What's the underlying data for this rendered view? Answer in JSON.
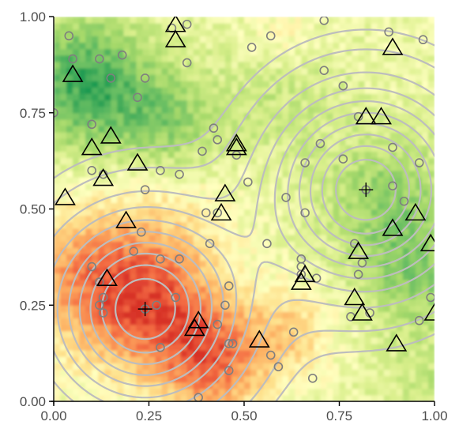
{
  "chart_data": {
    "type": "scatter",
    "title": "",
    "xlabel": "",
    "ylabel": "",
    "xlim": [
      0,
      1
    ],
    "ylim": [
      0,
      1
    ],
    "x_ticks": [
      "0.00",
      "0.25",
      "0.50",
      "0.75",
      "1.00"
    ],
    "y_ticks": [
      "0.00",
      "0.25",
      "0.50",
      "0.75",
      "1.00"
    ],
    "grid": false,
    "legend": "none",
    "background_heatmap": {
      "palette": [
        "#d73027",
        "#f46d43",
        "#fdae61",
        "#fee08b",
        "#ffffbf",
        "#d9ef8b",
        "#a6d96a",
        "#66bd63",
        "#1a9850"
      ],
      "low_regions": [
        [
          0.25,
          0.25
        ],
        [
          0.4,
          0.1
        ],
        [
          0.05,
          0.3
        ]
      ],
      "high_regions": [
        [
          0.08,
          0.83
        ],
        [
          0.3,
          0.7
        ],
        [
          0.9,
          0.5
        ],
        [
          0.95,
          0.3
        ]
      ]
    },
    "contours": {
      "color": "#bdbdbd",
      "centers": [
        [
          0.24,
          0.24
        ],
        [
          0.82,
          0.55
        ]
      ]
    },
    "centers": [
      [
        0.24,
        0.24
      ],
      [
        0.82,
        0.55
      ]
    ],
    "series": [
      {
        "marker": "circle",
        "color": "#7f7f7f",
        "points": [
          [
            0.04,
            0.95
          ],
          [
            0.05,
            0.89
          ],
          [
            0.12,
            0.89
          ],
          [
            0.18,
            0.9
          ],
          [
            0.15,
            0.84
          ],
          [
            0.24,
            0.84
          ],
          [
            0.22,
            0.79
          ],
          [
            0.31,
            0.97
          ],
          [
            0.35,
            0.98
          ],
          [
            0.35,
            0.88
          ],
          [
            0.52,
            0.92
          ],
          [
            0.57,
            0.95
          ],
          [
            0.71,
            0.99
          ],
          [
            0.88,
            0.96
          ],
          [
            0.97,
            0.94
          ],
          [
            0.71,
            0.86
          ],
          [
            0.76,
            0.82
          ],
          [
            0.0,
            0.75
          ],
          [
            0.1,
            0.72
          ],
          [
            0.42,
            0.71
          ],
          [
            0.43,
            0.68
          ],
          [
            0.39,
            0.65
          ],
          [
            0.28,
            0.6
          ],
          [
            0.33,
            0.59
          ],
          [
            0.1,
            0.6
          ],
          [
            0.13,
            0.59
          ],
          [
            0.24,
            0.55
          ],
          [
            0.48,
            0.64
          ],
          [
            0.51,
            0.57
          ],
          [
            0.7,
            0.67
          ],
          [
            0.66,
            0.62
          ],
          [
            0.76,
            0.63
          ],
          [
            0.8,
            0.74
          ],
          [
            0.89,
            0.66
          ],
          [
            0.96,
            0.62
          ],
          [
            0.89,
            0.56
          ],
          [
            0.92,
            0.52
          ],
          [
            0.61,
            0.53
          ],
          [
            0.66,
            0.49
          ],
          [
            0.4,
            0.49
          ],
          [
            0.43,
            0.49
          ],
          [
            0.41,
            0.41
          ],
          [
            0.56,
            0.41
          ],
          [
            0.79,
            0.41
          ],
          [
            0.81,
            0.36
          ],
          [
            0.65,
            0.37
          ],
          [
            0.65,
            0.35
          ],
          [
            0.65,
            0.33
          ],
          [
            0.69,
            0.32
          ],
          [
            0.8,
            0.33
          ],
          [
            0.78,
            0.22
          ],
          [
            0.83,
            0.23
          ],
          [
            0.23,
            0.44
          ],
          [
            0.21,
            0.39
          ],
          [
            0.28,
            0.37
          ],
          [
            0.33,
            0.37
          ],
          [
            0.1,
            0.35
          ],
          [
            0.12,
            0.31
          ],
          [
            0.13,
            0.27
          ],
          [
            0.12,
            0.25
          ],
          [
            0.13,
            0.23
          ],
          [
            0.27,
            0.25
          ],
          [
            0.32,
            0.27
          ],
          [
            0.46,
            0.3
          ],
          [
            0.45,
            0.25
          ],
          [
            0.46,
            0.15
          ],
          [
            0.47,
            0.15
          ],
          [
            0.43,
            0.2
          ],
          [
            0.28,
            0.14
          ],
          [
            0.57,
            0.12
          ],
          [
            0.59,
            0.09
          ],
          [
            0.46,
            0.08
          ],
          [
            0.38,
            0.01
          ],
          [
            0.63,
            0.18
          ],
          [
            0.68,
            0.06
          ],
          [
            0.99,
            0.27
          ],
          [
            0.96,
            0.21
          ]
        ]
      },
      {
        "marker": "triangle",
        "color": "#000000",
        "points": [
          [
            0.05,
            0.85
          ],
          [
            0.32,
            0.98
          ],
          [
            0.32,
            0.94
          ],
          [
            0.89,
            0.92
          ],
          [
            0.82,
            0.74
          ],
          [
            0.86,
            0.74
          ],
          [
            0.15,
            0.69
          ],
          [
            0.1,
            0.66
          ],
          [
            0.48,
            0.67
          ],
          [
            0.48,
            0.66
          ],
          [
            0.22,
            0.62
          ],
          [
            0.13,
            0.58
          ],
          [
            0.03,
            0.53
          ],
          [
            0.45,
            0.54
          ],
          [
            0.44,
            0.49
          ],
          [
            0.19,
            0.47
          ],
          [
            0.95,
            0.49
          ],
          [
            0.89,
            0.45
          ],
          [
            0.99,
            0.41
          ],
          [
            0.8,
            0.39
          ],
          [
            0.14,
            0.32
          ],
          [
            0.66,
            0.33
          ],
          [
            0.65,
            0.31
          ],
          [
            0.79,
            0.27
          ],
          [
            0.81,
            0.23
          ],
          [
            1.0,
            0.23
          ],
          [
            0.38,
            0.21
          ],
          [
            0.37,
            0.19
          ],
          [
            0.54,
            0.16
          ],
          [
            0.9,
            0.15
          ]
        ]
      }
    ]
  }
}
